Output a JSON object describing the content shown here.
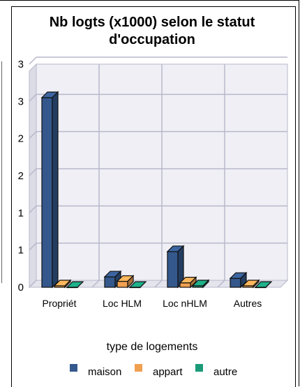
{
  "chart_data": {
    "type": "bar",
    "title": "Nb logts (x1000) selon le statut d'occupation",
    "title_lines": [
      "Nb logts (x1000) selon le statut",
      "d'occupation"
    ],
    "xlabel": "type de logements",
    "ylabel": "",
    "categories": [
      "Propriét",
      "Loc HLM",
      "Loc nHLM",
      "Autres"
    ],
    "y_tick_labels": [
      "0",
      "1",
      "1",
      "2",
      "2",
      "3",
      "3"
    ],
    "ylim": [
      0,
      3
    ],
    "grid": true,
    "legend_position": "bottom",
    "series": [
      {
        "name": "maison",
        "color": "#34588c",
        "values": [
          2.55,
          0.14,
          0.48,
          0.12
        ]
      },
      {
        "name": "appart",
        "color": "#f0a050",
        "values": [
          0.02,
          0.08,
          0.06,
          0.02
        ]
      },
      {
        "name": "autre",
        "color": "#1a9a78",
        "values": [
          0.0,
          0.0,
          0.02,
          0.0
        ]
      }
    ]
  }
}
